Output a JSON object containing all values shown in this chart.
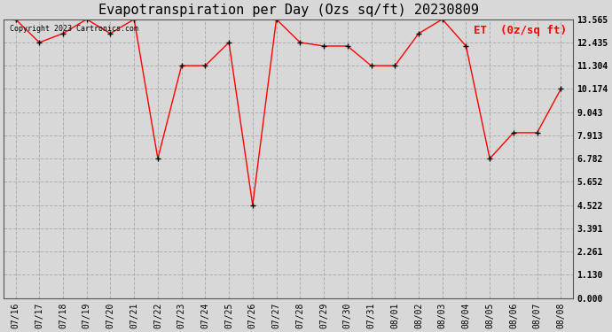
{
  "title": "Evapotranspiration per Day (Ozs sq/ft) 20230809",
  "legend_label": "ET  (0z/sq ft)",
  "copyright_text": "Copyright 2023 Cartronics.com",
  "x_labels": [
    "07/16",
    "07/17",
    "07/18",
    "07/19",
    "07/20",
    "07/21",
    "07/22",
    "07/23",
    "07/24",
    "07/25",
    "07/26",
    "07/27",
    "07/28",
    "07/29",
    "07/30",
    "07/31",
    "08/01",
    "08/02",
    "08/03",
    "08/04",
    "08/05",
    "08/06",
    "08/07",
    "08/08"
  ],
  "y_values": [
    13.565,
    12.435,
    12.87,
    13.565,
    12.87,
    13.565,
    6.782,
    11.304,
    11.304,
    12.435,
    4.522,
    13.565,
    12.435,
    12.261,
    12.261,
    11.304,
    11.304,
    12.87,
    13.565,
    12.261,
    6.782,
    8.043,
    8.043,
    10.174
  ],
  "y_ticks": [
    0.0,
    1.13,
    2.261,
    3.391,
    4.522,
    5.652,
    6.782,
    7.913,
    9.043,
    10.174,
    11.304,
    12.435,
    13.565
  ],
  "ylim": [
    0.0,
    13.565
  ],
  "line_color": "red",
  "marker_color": "black",
  "grid_color": "#aaaaaa",
  "bg_color": "#d8d8d8",
  "title_fontsize": 11,
  "legend_color": "red",
  "legend_fontsize": 9,
  "copyright_fontsize": 6,
  "tick_fontsize": 7,
  "ytick_fontsize": 7
}
